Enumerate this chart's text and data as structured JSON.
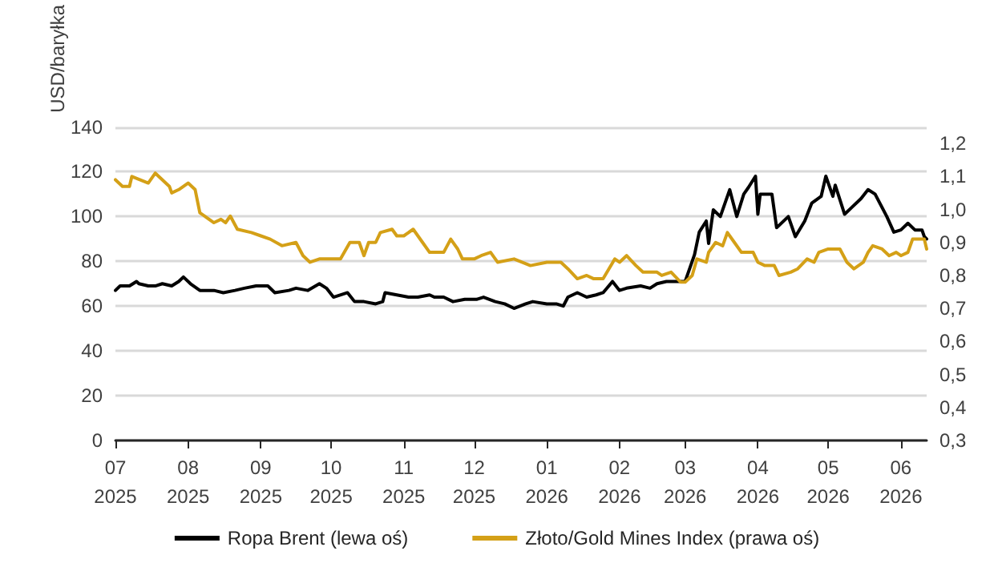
{
  "chart_data": {
    "type": "line",
    "ylabel": "USD/baryłka",
    "grid": "y",
    "legend": "bottom",
    "marker": "none",
    "line_style": "solid",
    "xlim": [
      "2025-07-01",
      "2026-06-12"
    ],
    "xticks": [
      {
        "value": "2025-07-01",
        "label": "07\n2025"
      },
      {
        "value": "2025-08-01",
        "label": "08\n2025"
      },
      {
        "value": "2025-09-01",
        "label": "09\n2025"
      },
      {
        "value": "2025-10-01",
        "label": "10\n2025"
      },
      {
        "value": "2025-11-01",
        "label": "11\n2025"
      },
      {
        "value": "2025-12-01",
        "label": "12\n2025"
      },
      {
        "value": "2026-01-01",
        "label": "01\n2026"
      },
      {
        "value": "2026-02-01",
        "label": "02\n2026"
      },
      {
        "value": "2026-03-01",
        "label": "03\n2026"
      },
      {
        "value": "2026-04-01",
        "label": "04\n2026"
      },
      {
        "value": "2026-05-01",
        "label": "05\n2026"
      },
      {
        "value": "2026-06-01",
        "label": "06\n2026"
      }
    ],
    "ylim": [
      0,
      140
    ],
    "yticks": [
      0,
      20,
      40,
      60,
      80,
      100,
      120,
      140
    ],
    "y2lim": [
      0.3,
      1.25
    ],
    "y2ticks": [
      {
        "value": 0.3,
        "label": "0,3"
      },
      {
        "value": 0.4,
        "label": "0,4"
      },
      {
        "value": 0.5,
        "label": "0,5"
      },
      {
        "value": 0.6,
        "label": "0,6"
      },
      {
        "value": 0.7,
        "label": "0,7"
      },
      {
        "value": 0.8,
        "label": "0,8"
      },
      {
        "value": 0.9,
        "label": "0,9"
      },
      {
        "value": 1.0,
        "label": "1,0"
      },
      {
        "value": 1.1,
        "label": "1,1"
      },
      {
        "value": 1.2,
        "label": "1,2"
      }
    ],
    "series": [
      {
        "name": "Ropa Brent (lewa oś)",
        "color": "#000000",
        "x": [
          "2025-07-01",
          "2025-07-03",
          "2025-07-07",
          "2025-07-10",
          "2025-07-11",
          "2025-07-15",
          "2025-07-18",
          "2025-07-21",
          "2025-07-25",
          "2025-07-28",
          "2025-07-30",
          "2025-08-02",
          "2025-08-06",
          "2025-08-12",
          "2025-08-16",
          "2025-08-21",
          "2025-08-25",
          "2025-08-30",
          "2025-09-04",
          "2025-09-07",
          "2025-09-13",
          "2025-09-16",
          "2025-09-21",
          "2025-09-26",
          "2025-09-29",
          "2025-10-02",
          "2025-10-08",
          "2025-10-11",
          "2025-10-15",
          "2025-10-20",
          "2025-10-23",
          "2025-10-24",
          "2025-10-29",
          "2025-11-03",
          "2025-11-07",
          "2025-11-12",
          "2025-11-14",
          "2025-11-18",
          "2025-11-22",
          "2025-11-27",
          "2025-12-02",
          "2025-12-05",
          "2025-12-10",
          "2025-12-14",
          "2025-12-18",
          "2025-12-23",
          "2025-12-26",
          "2026-01-01",
          "2026-01-05",
          "2026-01-08",
          "2026-01-10",
          "2026-01-14",
          "2026-01-18",
          "2026-01-22",
          "2026-01-25",
          "2026-01-29",
          "2026-02-01",
          "2026-02-04",
          "2026-02-10",
          "2026-02-14",
          "2026-02-17",
          "2026-02-21",
          "2026-02-26",
          "2026-03-01",
          "2026-03-05",
          "2026-03-07",
          "2026-03-10",
          "2026-03-11",
          "2026-03-13",
          "2026-03-16",
          "2026-03-20",
          "2026-03-23",
          "2026-03-26",
          "2026-03-28",
          "2026-03-31",
          "2026-04-01",
          "2026-04-02",
          "2026-04-07",
          "2026-04-09",
          "2026-04-14",
          "2026-04-17",
          "2026-04-21",
          "2026-04-24",
          "2026-04-28",
          "2026-04-30",
          "2026-05-03",
          "2026-05-04",
          "2026-05-08",
          "2026-05-11",
          "2026-05-15",
          "2026-05-18",
          "2026-05-21",
          "2026-05-26",
          "2026-05-29",
          "2026-06-01",
          "2026-06-04",
          "2026-06-07",
          "2026-06-10",
          "2026-06-11",
          "2026-06-12"
        ],
        "values": [
          67,
          69,
          69,
          71,
          70,
          69,
          69,
          70,
          69,
          71,
          73,
          70,
          67,
          67,
          66,
          67,
          68,
          69,
          69,
          66,
          67,
          68,
          67,
          70,
          68,
          64,
          66,
          62,
          62,
          61,
          62,
          66,
          65,
          64,
          64,
          65,
          64,
          64,
          62,
          63,
          63,
          64,
          62,
          61,
          59,
          61,
          62,
          61,
          61,
          60,
          64,
          66,
          64,
          65,
          66,
          71,
          67,
          68,
          69,
          68,
          70,
          71,
          71,
          71,
          83,
          93,
          98,
          88,
          103,
          100,
          112,
          100,
          110,
          113,
          118,
          101,
          110,
          110,
          95,
          100,
          91,
          98,
          106,
          109,
          118,
          109,
          114,
          101,
          104,
          108,
          112,
          110,
          100,
          93,
          94,
          97,
          94,
          94,
          91,
          90
        ]
      },
      {
        "name": "Złoto/Gold Mines Index (prawa oś)",
        "color": "#d4a017",
        "axis": "y2",
        "x": [
          "2025-07-01",
          "2025-07-04",
          "2025-07-07",
          "2025-07-08",
          "2025-07-15",
          "2025-07-18",
          "2025-07-21",
          "2025-07-24",
          "2025-07-25",
          "2025-07-28",
          "2025-08-01",
          "2025-08-04",
          "2025-08-06",
          "2025-08-12",
          "2025-08-15",
          "2025-08-17",
          "2025-08-19",
          "2025-08-22",
          "2025-08-28",
          "2025-09-01",
          "2025-09-05",
          "2025-09-10",
          "2025-09-16",
          "2025-09-19",
          "2025-09-22",
          "2025-09-26",
          "2025-10-01",
          "2025-10-05",
          "2025-10-09",
          "2025-10-13",
          "2025-10-15",
          "2025-10-17",
          "2025-10-20",
          "2025-10-22",
          "2025-10-27",
          "2025-10-29",
          "2025-11-01",
          "2025-11-05",
          "2025-11-09",
          "2025-11-12",
          "2025-11-18",
          "2025-11-21",
          "2025-11-24",
          "2025-11-26",
          "2025-12-01",
          "2025-12-04",
          "2025-12-08",
          "2025-12-11",
          "2025-12-18",
          "2025-12-25",
          "2026-01-01",
          "2026-01-07",
          "2026-01-10",
          "2026-01-14",
          "2026-01-18",
          "2026-01-21",
          "2026-01-25",
          "2026-01-30",
          "2026-02-01",
          "2026-02-04",
          "2026-02-08",
          "2026-02-11",
          "2026-02-14",
          "2026-02-17",
          "2026-02-19",
          "2026-02-23",
          "2026-02-27",
          "2026-03-01",
          "2026-03-04",
          "2026-03-06",
          "2026-03-10",
          "2026-03-11",
          "2026-03-14",
          "2026-03-17",
          "2026-03-19",
          "2026-03-22",
          "2026-03-25",
          "2026-03-30",
          "2026-04-01",
          "2026-04-04",
          "2026-04-08",
          "2026-04-10",
          "2026-04-15",
          "2026-04-18",
          "2026-04-22",
          "2026-04-25",
          "2026-04-27",
          "2026-05-01",
          "2026-05-04",
          "2026-05-06",
          "2026-05-09",
          "2026-05-12",
          "2026-05-16",
          "2026-05-18",
          "2026-05-20",
          "2026-05-24",
          "2026-05-27",
          "2026-05-30",
          "2026-06-01",
          "2026-06-04",
          "2026-06-06",
          "2026-06-10",
          "2026-06-11",
          "2026-06-12"
        ],
        "values": [
          1.09,
          1.07,
          1.07,
          1.1,
          1.08,
          1.11,
          1.09,
          1.07,
          1.05,
          1.06,
          1.08,
          1.06,
          0.99,
          0.96,
          0.97,
          0.96,
          0.98,
          0.94,
          0.93,
          0.92,
          0.91,
          0.89,
          0.9,
          0.86,
          0.84,
          0.85,
          0.85,
          0.85,
          0.9,
          0.9,
          0.86,
          0.9,
          0.9,
          0.93,
          0.94,
          0.92,
          0.92,
          0.94,
          0.9,
          0.87,
          0.87,
          0.91,
          0.88,
          0.85,
          0.85,
          0.86,
          0.87,
          0.84,
          0.85,
          0.83,
          0.84,
          0.84,
          0.82,
          0.79,
          0.8,
          0.79,
          0.79,
          0.85,
          0.84,
          0.86,
          0.83,
          0.81,
          0.81,
          0.81,
          0.8,
          0.81,
          0.78,
          0.78,
          0.8,
          0.85,
          0.84,
          0.87,
          0.9,
          0.89,
          0.93,
          0.9,
          0.87,
          0.87,
          0.84,
          0.83,
          0.83,
          0.8,
          0.81,
          0.82,
          0.85,
          0.84,
          0.87,
          0.88,
          0.88,
          0.88,
          0.84,
          0.82,
          0.84,
          0.87,
          0.89,
          0.88,
          0.86,
          0.87,
          0.86,
          0.87,
          0.91,
          0.91,
          0.91,
          0.88
        ]
      }
    ]
  }
}
